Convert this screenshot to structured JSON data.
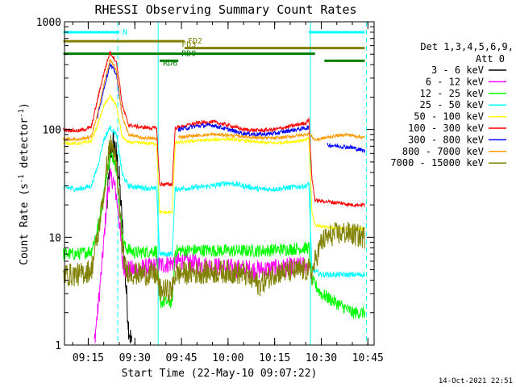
{
  "chart_data": {
    "type": "line",
    "title": "RHESSI Observing Summary Count Rates",
    "xlabel": "Start Time (22-May-10 09:07:22)",
    "ylabel": "Count Rate (s⁻¹ detector⁻¹)",
    "ylabel_main": "Count Rate (s",
    "ylabel_sup1": "-1",
    "ylabel_mid": " detector",
    "ylabel_sup2": "-1",
    "ylabel_end": ")",
    "y_scale": "log",
    "ylim": [
      1,
      1000
    ],
    "xlim": [
      "09:07:22",
      "10:47:00"
    ],
    "y_ticks": [
      {
        "value": 1,
        "label": "1"
      },
      {
        "value": 10,
        "label": "10"
      },
      {
        "value": 100,
        "label": "100"
      },
      {
        "value": 1000,
        "label": "1000"
      }
    ],
    "x_ticks": [
      {
        "time": "09:15",
        "label": "09:15"
      },
      {
        "time": "09:30",
        "label": "09:30"
      },
      {
        "time": "09:45",
        "label": "09:45"
      },
      {
        "time": "10:00",
        "label": "10:00"
      },
      {
        "time": "10:15",
        "label": "10:15"
      },
      {
        "time": "10:30",
        "label": "10:30"
      },
      {
        "time": "10:45",
        "label": "10:45"
      }
    ],
    "legend": {
      "position": "right",
      "header1": "Det 1,3,4,5,6,9,",
      "header2": "Att 0"
    },
    "timestamp": "14-Oct-2021 22:51",
    "series": [
      {
        "name": "3 - 6 keV",
        "color": "#000000",
        "points": [
          [
            "09:07",
            null
          ],
          [
            "09:20",
            null
          ],
          [
            "09:21",
            18
          ],
          [
            "09:22",
            55
          ],
          [
            "09:23",
            78
          ],
          [
            "09:24",
            60
          ],
          [
            "09:25",
            35
          ],
          [
            "09:26",
            12
          ],
          [
            "09:27",
            4
          ],
          [
            "09:28",
            1.5
          ],
          [
            "09:29",
            1
          ]
        ]
      },
      {
        "name": "6 - 12 keV",
        "color": "#ff00ff",
        "points": [
          [
            "09:07",
            null
          ],
          [
            "09:16",
            null
          ],
          [
            "09:17",
            1.1
          ],
          [
            "09:18",
            2.0
          ],
          [
            "09:19",
            4
          ],
          [
            "09:20",
            9
          ],
          [
            "09:21",
            22
          ],
          [
            "09:22",
            36
          ],
          [
            "09:23",
            34
          ],
          [
            "09:24",
            25
          ],
          [
            "09:25",
            14
          ],
          [
            "09:26",
            6
          ],
          [
            "09:27",
            5
          ],
          [
            "09:30",
            5
          ],
          [
            "09:38",
            5.5
          ],
          [
            "09:45",
            6
          ],
          [
            "09:52",
            5.5
          ],
          [
            "10:00",
            5.2
          ],
          [
            "10:10",
            5
          ],
          [
            "10:18",
            5.2
          ],
          [
            "10:26",
            5.5
          ],
          [
            "10:27",
            null
          ]
        ]
      },
      {
        "name": "12 - 25 keV",
        "color": "#00ff00",
        "points": [
          [
            "09:07",
            7
          ],
          [
            "09:12",
            7
          ],
          [
            "09:16",
            7.5
          ],
          [
            "09:18",
            12
          ],
          [
            "09:20",
            25
          ],
          [
            "09:21",
            40
          ],
          [
            "09:22",
            55
          ],
          [
            "09:23",
            57
          ],
          [
            "09:24",
            45
          ],
          [
            "09:25",
            22
          ],
          [
            "09:26",
            10
          ],
          [
            "09:27",
            8
          ],
          [
            "09:30",
            7.2
          ],
          [
            "09:37",
            7.5
          ],
          [
            "09:38",
            2.5
          ],
          [
            "09:42",
            2.5
          ],
          [
            "09:43",
            7.5
          ],
          [
            "09:50",
            7.6
          ],
          [
            "10:00",
            7.5
          ],
          [
            "10:10",
            7.5
          ],
          [
            "10:20",
            7.8
          ],
          [
            "10:26",
            8
          ],
          [
            "10:27",
            4
          ],
          [
            "10:30",
            3
          ],
          [
            "10:40",
            2
          ],
          [
            "10:44",
            2
          ]
        ]
      },
      {
        "name": "25 - 50 keV",
        "color": "#00ffff",
        "points": [
          [
            "09:07",
            29
          ],
          [
            "09:12",
            28
          ],
          [
            "09:16",
            30
          ],
          [
            "09:18",
            45
          ],
          [
            "09:20",
            80
          ],
          [
            "09:22",
            105
          ],
          [
            "09:24",
            90
          ],
          [
            "09:25",
            60
          ],
          [
            "09:26",
            38
          ],
          [
            "09:28",
            30
          ],
          [
            "09:32",
            29
          ],
          [
            "09:37",
            28
          ],
          [
            "09:38",
            7
          ],
          [
            "09:42",
            7
          ],
          [
            "09:43",
            28
          ],
          [
            "09:50",
            29
          ],
          [
            "09:55",
            30
          ],
          [
            "10:00",
            32
          ],
          [
            "10:05",
            30
          ],
          [
            "10:10",
            28
          ],
          [
            "10:15",
            28
          ],
          [
            "10:20",
            29
          ],
          [
            "10:25",
            30
          ],
          [
            "10:26",
            31
          ],
          [
            "10:27",
            5
          ],
          [
            "10:30",
            4.5
          ],
          [
            "10:40",
            4.5
          ],
          [
            "10:44",
            4.5
          ]
        ]
      },
      {
        "name": "50 - 100 keV",
        "color": "#ffff00",
        "points": [
          [
            "09:07",
            75
          ],
          [
            "09:12",
            74
          ],
          [
            "09:16",
            78
          ],
          [
            "09:18",
            110
          ],
          [
            "09:20",
            165
          ],
          [
            "09:22",
            205
          ],
          [
            "09:24",
            170
          ],
          [
            "09:25",
            120
          ],
          [
            "09:26",
            85
          ],
          [
            "09:28",
            76
          ],
          [
            "09:32",
            75
          ],
          [
            "09:37",
            74
          ],
          [
            "09:38",
            17
          ],
          [
            "09:42",
            17
          ],
          [
            "09:43",
            75
          ],
          [
            "09:50",
            79
          ],
          [
            "09:55",
            80
          ],
          [
            "10:00",
            82
          ],
          [
            "10:05",
            79
          ],
          [
            "10:10",
            76
          ],
          [
            "10:15",
            75
          ],
          [
            "10:20",
            77
          ],
          [
            "10:25",
            80
          ],
          [
            "10:26",
            83
          ],
          [
            "10:27",
            17
          ],
          [
            "10:28",
            13
          ],
          [
            "10:35",
            12
          ],
          [
            "10:40",
            12
          ],
          [
            "10:44",
            12
          ]
        ]
      },
      {
        "name": "100 - 300 keV",
        "color": "#ff0000",
        "points": [
          [
            "09:07",
            100
          ],
          [
            "09:12",
            97
          ],
          [
            "09:16",
            105
          ],
          [
            "09:18",
            190
          ],
          [
            "09:20",
            330
          ],
          [
            "09:22",
            520
          ],
          [
            "09:24",
            430
          ],
          [
            "09:25",
            280
          ],
          [
            "09:26",
            165
          ],
          [
            "09:28",
            110
          ],
          [
            "09:32",
            105
          ],
          [
            "09:37",
            103
          ],
          [
            "09:38",
            31
          ],
          [
            "09:42",
            31
          ],
          [
            "09:43",
            103
          ],
          [
            "09:50",
            115
          ],
          [
            "09:55",
            118
          ],
          [
            "10:00",
            110
          ],
          [
            "10:05",
            100
          ],
          [
            "10:10",
            98
          ],
          [
            "10:15",
            100
          ],
          [
            "10:20",
            107
          ],
          [
            "10:25",
            115
          ],
          [
            "10:26",
            125
          ],
          [
            "10:27",
            35
          ],
          [
            "10:28",
            22
          ],
          [
            "10:35",
            21
          ],
          [
            "10:40",
            20
          ],
          [
            "10:44",
            20
          ]
        ]
      },
      {
        "name": "300 - 800 keV",
        "color": "#0000ff",
        "points": [
          [
            "09:07",
            null
          ],
          [
            "09:17",
            null
          ],
          [
            "09:18",
            130
          ],
          [
            "09:20",
            240
          ],
          [
            "09:22",
            400
          ],
          [
            "09:24",
            330
          ],
          [
            "09:25",
            210
          ],
          [
            "09:26",
            130
          ],
          [
            "09:27",
            null
          ],
          [
            "09:43",
            null
          ],
          [
            "09:44",
            100
          ],
          [
            "09:50",
            108
          ],
          [
            "09:55",
            110
          ],
          [
            "10:00",
            100
          ],
          [
            "10:05",
            92
          ],
          [
            "10:10",
            90
          ],
          [
            "10:15",
            92
          ],
          [
            "10:20",
            98
          ],
          [
            "10:25",
            103
          ],
          [
            "10:26",
            105
          ],
          [
            "10:27",
            null
          ],
          [
            "10:31",
            null
          ],
          [
            "10:32",
            72
          ],
          [
            "10:40",
            68
          ],
          [
            "10:44",
            63
          ]
        ]
      },
      {
        "name": "800 - 7000 keV",
        "color": "#ff9900",
        "points": [
          [
            "09:07",
            82
          ],
          [
            "09:12",
            81
          ],
          [
            "09:16",
            86
          ],
          [
            "09:18",
            140
          ],
          [
            "09:20",
            260
          ],
          [
            "09:22",
            440
          ],
          [
            "09:24",
            360
          ],
          [
            "09:25",
            220
          ],
          [
            "09:26",
            130
          ],
          [
            "09:28",
            90
          ],
          [
            "09:32",
            84
          ],
          [
            "09:37",
            82
          ],
          [
            "09:38",
            null
          ],
          [
            "09:43",
            null
          ],
          [
            "09:44",
            85
          ],
          [
            "09:50",
            88
          ],
          [
            "09:55",
            90
          ],
          [
            "10:00",
            89
          ],
          [
            "10:05",
            86
          ],
          [
            "10:10",
            84
          ],
          [
            "10:15",
            83
          ],
          [
            "10:20",
            86
          ],
          [
            "10:25",
            90
          ],
          [
            "10:26",
            92
          ],
          [
            "10:28",
            80
          ],
          [
            "10:33",
            86
          ],
          [
            "10:38",
            90
          ],
          [
            "10:44",
            84
          ]
        ]
      },
      {
        "name": "7000 - 15000 keV",
        "color": "#808000",
        "points": [
          [
            "09:07",
            4.5
          ],
          [
            "09:12",
            4.5
          ],
          [
            "09:16",
            5
          ],
          [
            "09:18",
            10
          ],
          [
            "09:20",
            25
          ],
          [
            "09:21",
            45
          ],
          [
            "09:22",
            72
          ],
          [
            "09:23",
            68
          ],
          [
            "09:24",
            45
          ],
          [
            "09:25",
            20
          ],
          [
            "09:26",
            8
          ],
          [
            "09:27",
            5
          ],
          [
            "09:30",
            4.6
          ],
          [
            "09:37",
            4.5
          ],
          [
            "09:38",
            3.2
          ],
          [
            "09:42",
            3.2
          ],
          [
            "09:43",
            4.6
          ],
          [
            "09:50",
            4.7
          ],
          [
            "10:00",
            4.8
          ],
          [
            "10:05",
            4.6
          ],
          [
            "10:10",
            3.6
          ],
          [
            "10:15",
            4.7
          ],
          [
            "10:20",
            4.8
          ],
          [
            "10:26",
            5
          ],
          [
            "10:27",
            4.5
          ],
          [
            "10:28",
            6
          ],
          [
            "10:30",
            9
          ],
          [
            "10:33",
            10.5
          ],
          [
            "10:38",
            11
          ],
          [
            "10:44",
            10
          ]
        ]
      }
    ],
    "attenuator_bars": [
      {
        "name": "N",
        "color": "#00ffff",
        "y_value": 800,
        "segments": [
          [
            "09:07",
            "09:25"
          ],
          [
            "10:26",
            "10:44"
          ]
        ],
        "labels": [
          {
            "text": "N",
            "at": "09:25"
          }
        ]
      },
      {
        "name": "FD2",
        "color": "#808000",
        "y_value": 660,
        "segments": [
          [
            "09:07",
            "09:46"
          ]
        ],
        "labels": [
          {
            "text": "FD2",
            "at": "09:46"
          }
        ]
      },
      {
        "name": "FD3",
        "color": "#808000",
        "y_value": 570,
        "segments": [
          [
            "09:46",
            "10:44"
          ]
        ],
        "labels": [
          {
            "text": "FD3",
            "at": "09:44"
          }
        ]
      },
      {
        "name": "RD0",
        "color": "#008000",
        "y_value": 505,
        "segments": [
          [
            "09:07",
            "10:28"
          ]
        ],
        "labels": [
          {
            "text": "RD0",
            "at": "09:44"
          }
        ]
      },
      {
        "name": "RD6",
        "color": "#008000",
        "y_value": 435,
        "segments": [
          [
            "09:38",
            "09:44"
          ],
          [
            "10:31",
            "10:44"
          ]
        ],
        "labels": [
          {
            "text": "RD6",
            "at": "09:38"
          }
        ]
      }
    ],
    "vertical_markers": [
      {
        "time": "09:24.5",
        "color": "#00ffff",
        "style": "dashed"
      },
      {
        "time": "09:37.5",
        "color": "#00ffff",
        "style": "solid"
      },
      {
        "time": "10:26.5",
        "color": "#00ffff",
        "style": "solid"
      },
      {
        "time": "10:44.5",
        "color": "#00ffff",
        "style": "dashed"
      }
    ]
  }
}
